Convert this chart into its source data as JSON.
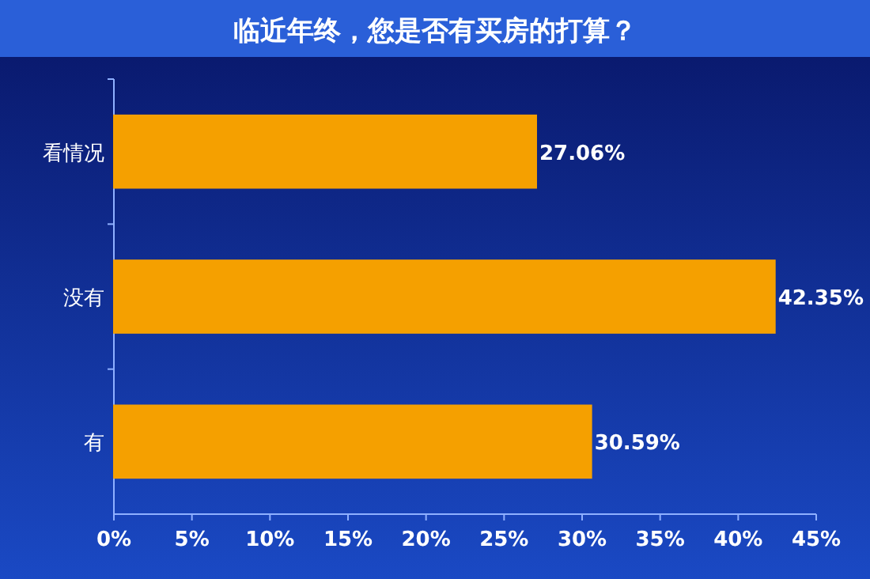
{
  "chart_data": {
    "type": "bar",
    "orientation": "horizontal",
    "title": "临近年终，您是否有买房的打算？",
    "categories": [
      "看情况",
      "没有",
      "有"
    ],
    "values": [
      27.06,
      42.35,
      30.59
    ],
    "value_labels": [
      "27.06%",
      "42.35%",
      "30.59%"
    ],
    "color": "#f5a000",
    "xlim": [
      0,
      45
    ],
    "xticks": [
      {
        "value": 0,
        "label": "0%"
      },
      {
        "value": 5,
        "label": "5%"
      },
      {
        "value": 10,
        "label": "10%"
      },
      {
        "value": 15,
        "label": "15%"
      },
      {
        "value": 20,
        "label": "20%"
      },
      {
        "value": 25,
        "label": "25%"
      },
      {
        "value": 30,
        "label": "30%"
      },
      {
        "value": 35,
        "label": "35%"
      },
      {
        "value": 40,
        "label": "40%"
      },
      {
        "value": 45,
        "label": "45%"
      }
    ]
  }
}
